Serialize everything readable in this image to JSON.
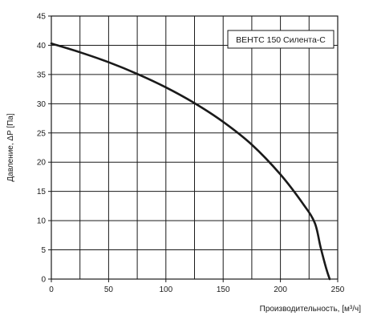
{
  "chart_data": {
    "type": "line",
    "xlabel": "Производительность, [м³/ч]",
    "ylabel": "Давление, ΔP [Па]",
    "xlim": [
      0,
      250
    ],
    "ylim": [
      0,
      45
    ],
    "x_ticks": [
      0,
      50,
      100,
      150,
      200,
      250
    ],
    "y_ticks": [
      0,
      5,
      10,
      15,
      20,
      25,
      30,
      35,
      40,
      45
    ],
    "x_tick_labels": [
      "0",
      "50",
      "100",
      "150",
      "200",
      "250"
    ],
    "y_tick_labels": [
      "0",
      "5",
      "10",
      "15",
      "20",
      "25",
      "30",
      "35",
      "40",
      "45"
    ],
    "x_minor_gridlines": [
      25,
      75,
      125,
      175,
      225
    ],
    "grid": true,
    "legend_position": "top-right",
    "series": [
      {
        "name": "ВЕНТС 150 Силента-С",
        "color": "#1a1a1a",
        "x": [
          0,
          25,
          50,
          75,
          100,
          125,
          150,
          175,
          200,
          220,
          230,
          235,
          240,
          243
        ],
        "y": [
          40.3,
          38.8,
          37.1,
          35.1,
          32.8,
          30.1,
          26.9,
          23.0,
          17.9,
          12.8,
          9.6,
          5.5,
          1.8,
          0
        ]
      }
    ]
  }
}
